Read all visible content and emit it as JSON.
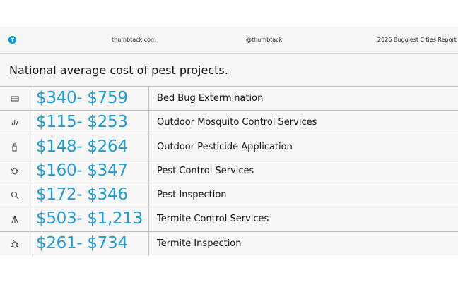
{
  "header": {
    "site": "thumbtack.com",
    "handle": "@thumbtack",
    "report": "2026 Buggiest Cities Report"
  },
  "title": "National average cost of pest projects.",
  "table": {
    "rows": [
      [
        "$340- $759",
        "Bed Bug Extermination"
      ],
      [
        "$115- $253",
        "Outdoor Mosquito Control Services"
      ],
      [
        "$148- $264",
        "Outdoor Pesticide Application"
      ],
      [
        "$160- $347",
        "Pest Control Services"
      ],
      [
        "$172- $346",
        "Pest Inspection"
      ],
      [
        "$503- $1,213",
        "Termite Control Services"
      ],
      [
        "$261- $734",
        "Termite Inspection"
      ]
    ]
  }
}
